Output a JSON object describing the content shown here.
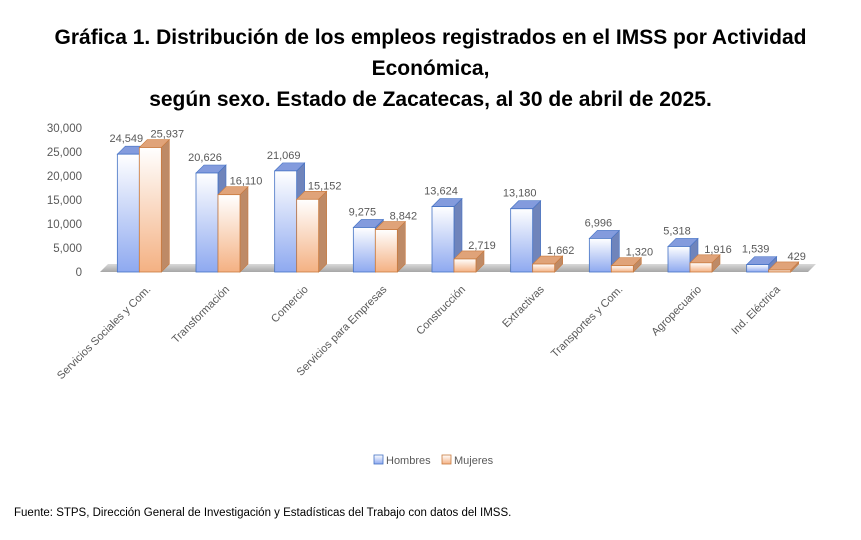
{
  "title_line1": "Gráfica 1. Distribución de los empleos registrados en el IMSS por Actividad Económica,",
  "title_line2": "según sexo. Estado de Zacatecas, al 30 de abril de 2025.",
  "source": "Fuente: STPS, Dirección General de Investigación y Estadísticas del Trabajo con datos del IMSS.",
  "chart_data": {
    "type": "bar",
    "style": "3d-clustered-column",
    "title": "Gráfica 1. Distribución de los empleos registrados en el IMSS por Actividad Económica, según sexo. Estado de Zacatecas, al 30 de abril de 2025.",
    "categories": [
      "Servicios Sociales y Com.",
      "Transformación",
      "Comercio",
      "Servicios para Empresas",
      "Construcción",
      "Extractivas",
      "Transportes y Com.",
      "Agropecuario",
      "Ind. Eléctrica"
    ],
    "series": [
      {
        "name": "Hombres",
        "values": [
          24549,
          20626,
          21069,
          9275,
          13624,
          13180,
          6996,
          5318,
          1539
        ],
        "color": "#8EA9F0"
      },
      {
        "name": "Mujeres",
        "values": [
          25937,
          16110,
          15152,
          8842,
          2719,
          1662,
          1320,
          1916,
          429
        ],
        "color": "#F4B183"
      }
    ],
    "data_labels": {
      "Hombres": [
        "24,549",
        "20,626",
        "21,069",
        "9,275",
        "13,624",
        "13,180",
        "6,996",
        "5,318",
        "1,539"
      ],
      "Mujeres": [
        "25,937",
        "16,110",
        "15,152",
        "8,842",
        "2,719",
        "1,662",
        "1,320",
        "1,916",
        "429"
      ]
    },
    "yticks": [
      "0",
      "5,000",
      "10,000",
      "15,000",
      "20,000",
      "25,000",
      "30,000"
    ],
    "ylim": [
      0,
      30000
    ],
    "xlabel": "",
    "ylabel": "",
    "grid": false,
    "legend_position": "bottom"
  }
}
